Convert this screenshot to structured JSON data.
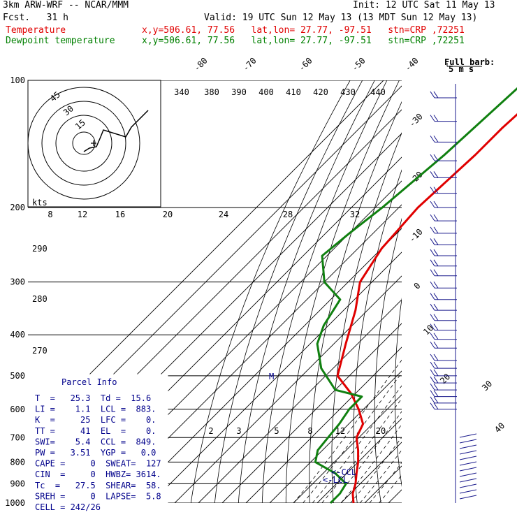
{
  "header": {
    "model": "3km ARW-WRF -- NCAR/MMM",
    "init": "Init: 12 UTC Sat 11 May 13",
    "fcst": "Fcst.   31 h",
    "valid": "Valid: 19 UTC Sun 12 May 13 (13 MDT Sun 12 May 13)",
    "temp_label": "Temperature",
    "temp_info": "x,y=506.61, 77.56   lat,lon= 27.77, -97.51   stn=CRP ,72251",
    "dew_label": "Dewpoint temperature",
    "dew_info": "x,y=506.61, 77.56   lat,lon= 27.77, -97.51   stn=CRP ,72251"
  },
  "colors": {
    "temperature": "#e00000",
    "dewpoint": "#108010",
    "text_blue": "#00008b",
    "barb": "#1a1a8c"
  },
  "chart_data": {
    "type": "line",
    "chart_kind": "skew-T log-p",
    "pressure_levels": [
      "100",
      "200",
      "300",
      "400",
      "500",
      "600",
      "700",
      "800",
      "900",
      "1000"
    ],
    "isotherm_labels": [
      "-80",
      "-70",
      "-60",
      "-50",
      "-40",
      "-30",
      "-20",
      "-10",
      "0",
      "10",
      "20",
      "30",
      "40"
    ],
    "theta_labels": [
      "340",
      "380",
      "390",
      "400",
      "410",
      "420",
      "430",
      "440"
    ],
    "mixing_ratio_upper": [
      "8",
      "12",
      "16",
      "20",
      "24",
      "28",
      "32"
    ],
    "mixing_ratio_lower": [
      "2",
      "3",
      "5",
      "8",
      "12",
      "20"
    ],
    "dry_adiabat_side": [
      "290",
      "280",
      "270"
    ],
    "hodograph": {
      "unit": "kts",
      "ring_labels": [
        "15",
        "30",
        "45"
      ]
    },
    "barb_legend": [
      "Full barb:",
      "5 m s"
    ],
    "series": [
      {
        "name": "Temperature",
        "points": [
          [
            -68,
            100
          ],
          [
            -70,
            130
          ],
          [
            -70,
            150
          ],
          [
            -72,
            200
          ],
          [
            -70,
            250
          ],
          [
            -65,
            300
          ],
          [
            -55,
            350
          ],
          [
            -45,
            420
          ],
          [
            -35,
            500
          ],
          [
            -22,
            550
          ],
          [
            -12,
            600
          ],
          [
            -4,
            650
          ],
          [
            -1,
            700
          ],
          [
            5,
            750
          ],
          [
            10,
            800
          ],
          [
            14,
            850
          ],
          [
            18,
            900
          ],
          [
            21,
            950
          ],
          [
            25.3,
            1000
          ]
        ]
      },
      {
        "name": "Dewpoint temperature",
        "points": [
          [
            -80,
            100
          ],
          [
            -83,
            150
          ],
          [
            -87,
            200
          ],
          [
            -90,
            230
          ],
          [
            -92,
            260
          ],
          [
            -80,
            300
          ],
          [
            -66,
            330
          ],
          [
            -62,
            380
          ],
          [
            -57,
            420
          ],
          [
            -45,
            480
          ],
          [
            -30,
            540
          ],
          [
            -16,
            560
          ],
          [
            -16,
            600
          ],
          [
            -14,
            650
          ],
          [
            -13,
            700
          ],
          [
            -12,
            750
          ],
          [
            -8,
            800
          ],
          [
            5,
            850
          ],
          [
            14,
            900
          ],
          [
            15.6,
            950
          ],
          [
            15.6,
            1000
          ]
        ]
      }
    ],
    "markers": [
      "M",
      "<-CCL",
      "<-LCL"
    ]
  },
  "parcel_info": {
    "title": "Parcel Info",
    "rows": [
      "T  =   25.3  Td =  15.6",
      "LI =    1.1  LCL =  883.",
      "K  =     25  LFC =    0.",
      "TT =     41  EL  =    0.",
      "SWI=    5.4  CCL =  849.",
      "PW =   3.51  YGP =   0.0",
      "CAPE =     0  SWEAT=  127",
      "CIN  =     0  HWBZ= 3614.",
      "Tc  =   27.5  SHEAR=  58.",
      "SREH =     0  LAPSE=  5.8",
      "CELL = 242/26"
    ]
  }
}
